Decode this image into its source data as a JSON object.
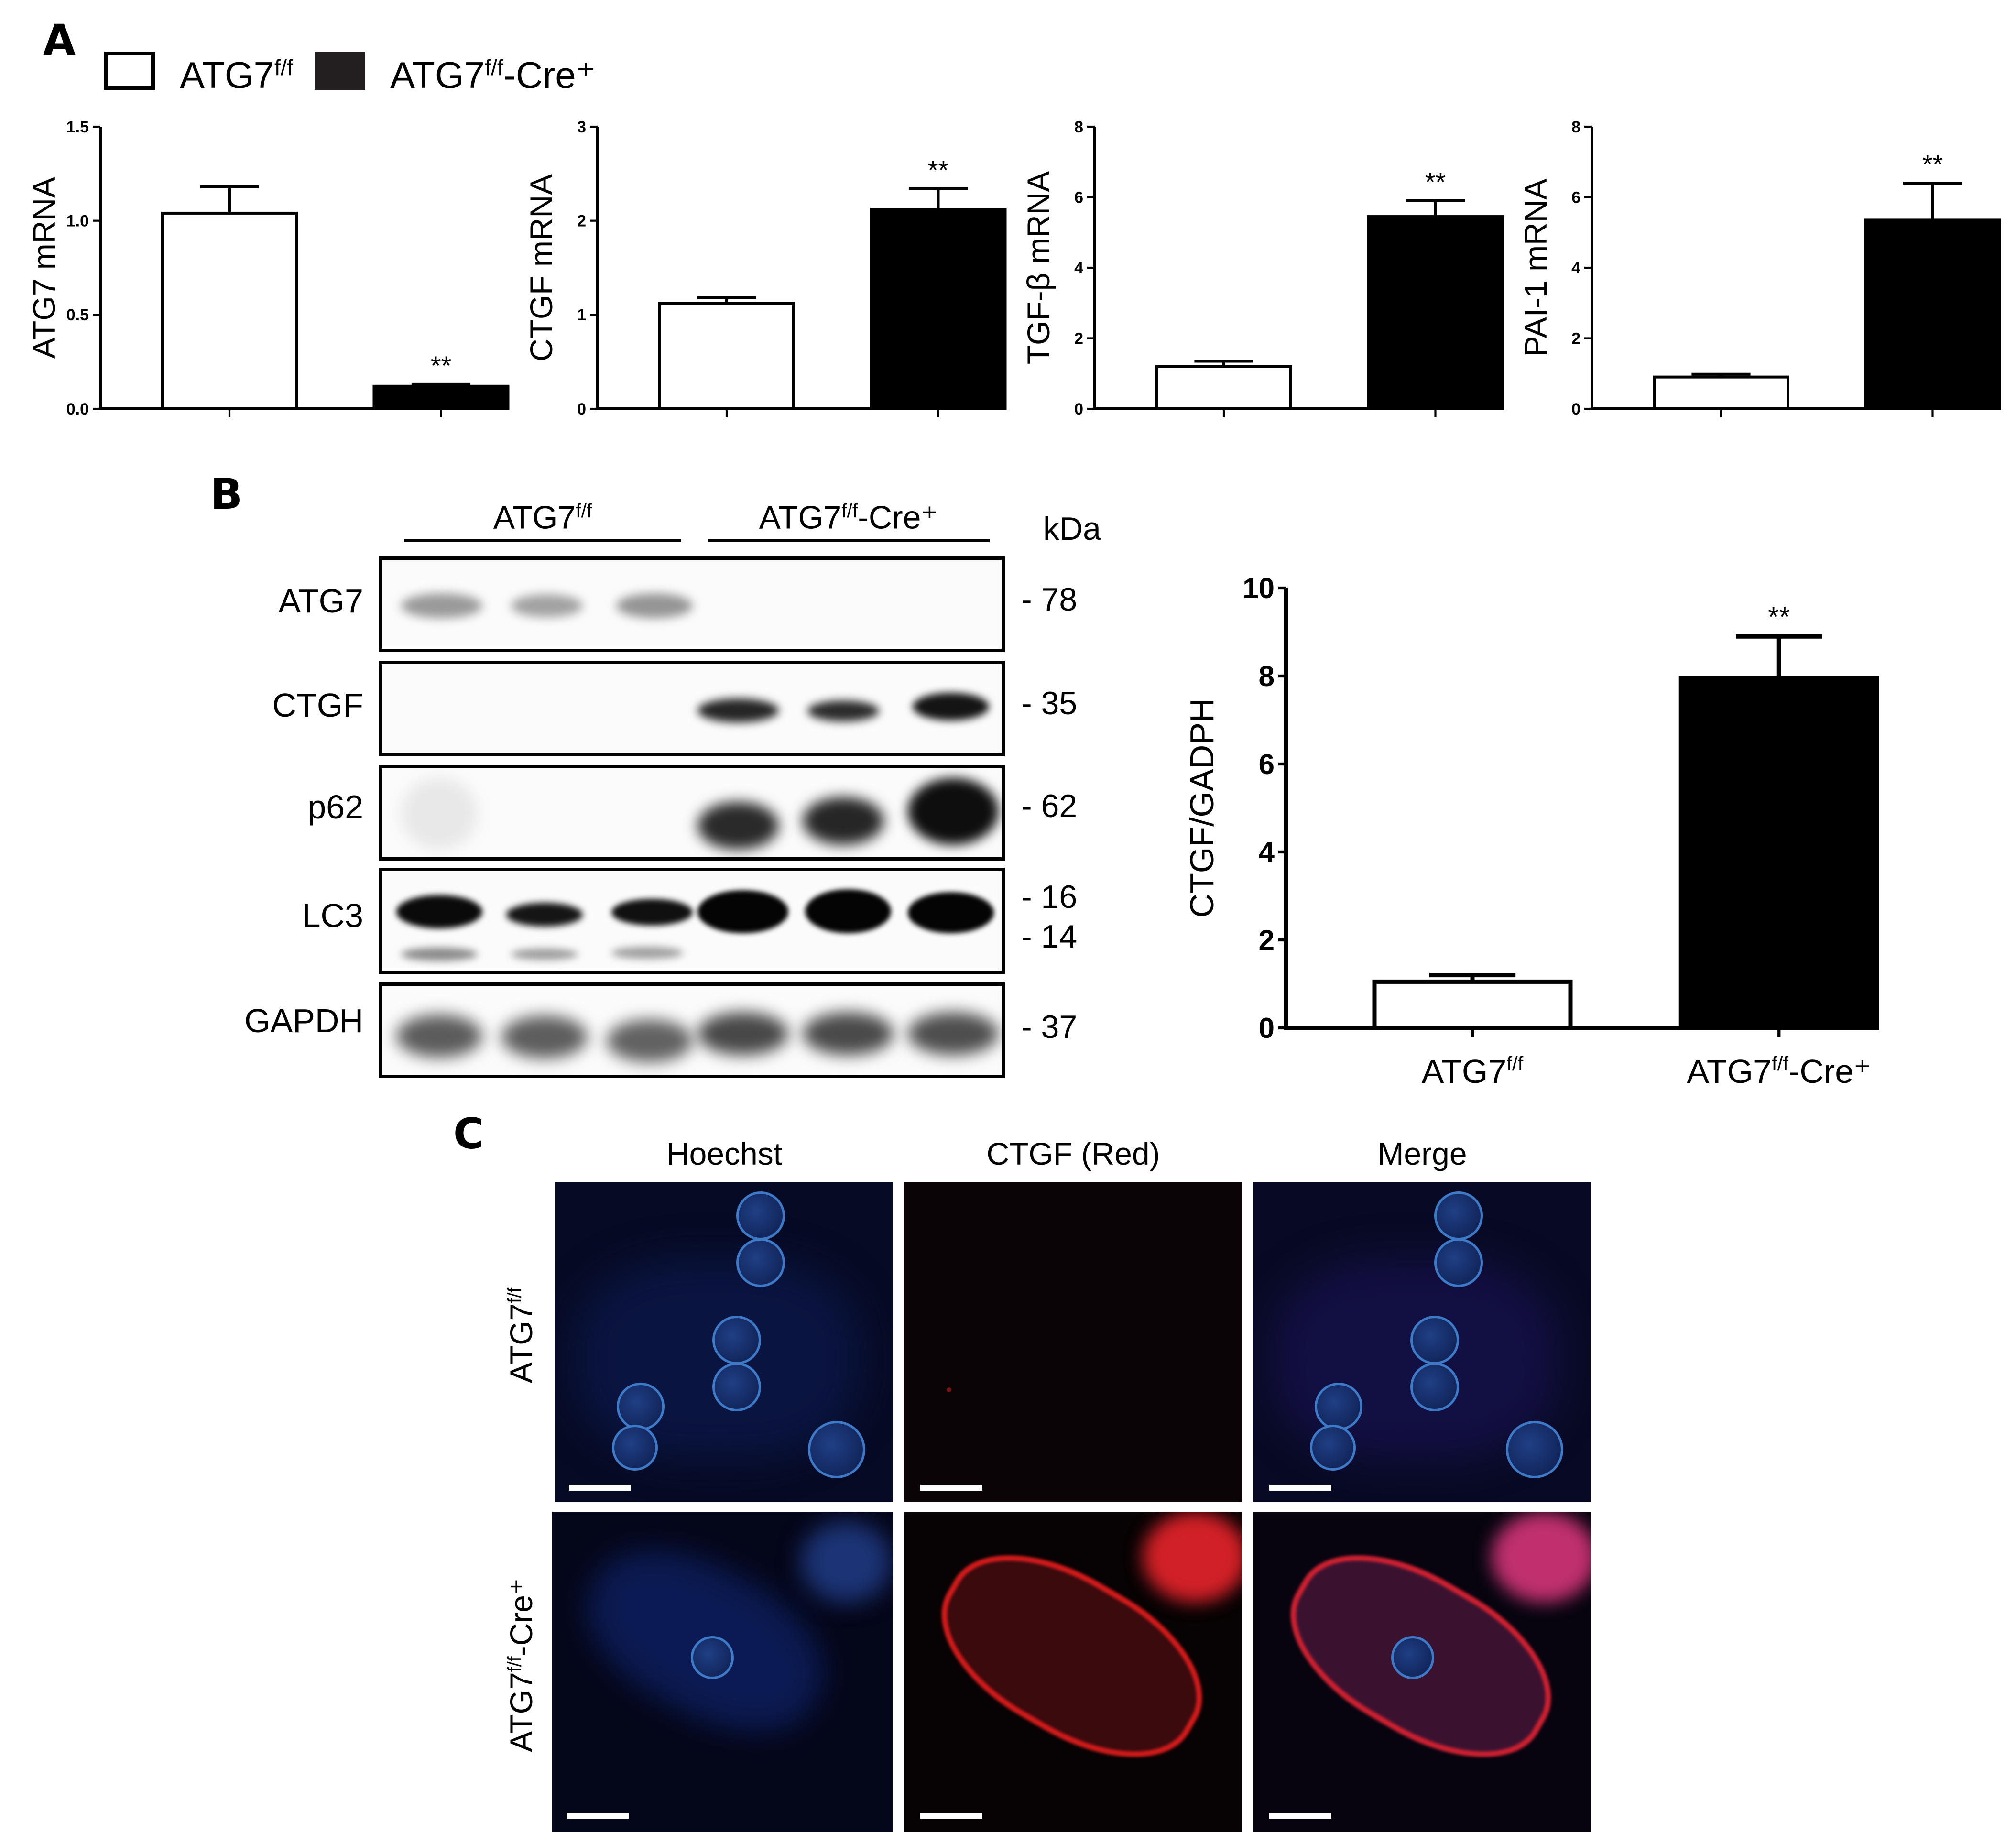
{
  "panels": {
    "a": "A",
    "b": "B",
    "c": "C"
  },
  "legend": {
    "items": [
      {
        "main": "ATG7",
        "sup": "f/f",
        "suffix": "",
        "color": "#ffffff"
      },
      {
        "main": "ATG7",
        "sup": "f/f",
        "suffix": "-Cre⁺",
        "color": "#000000"
      }
    ]
  },
  "chart_data": [
    {
      "type": "bar",
      "ylabel": "ATG7 mRNA",
      "categories": [
        "ATG7f/f",
        "ATG7f/f-Cre+"
      ],
      "values": [
        1.04,
        0.12
      ],
      "errors": [
        0.14,
        0.01
      ],
      "ylim": [
        0,
        1.5
      ],
      "yticks": [
        "0.0",
        "0.5",
        "1.0",
        "1.5"
      ],
      "significance": [
        null,
        "**"
      ]
    },
    {
      "type": "bar",
      "ylabel": "CTGF mRNA",
      "categories": [
        "ATG7f/f",
        "ATG7f/f-Cre+"
      ],
      "values": [
        1.12,
        2.12
      ],
      "errors": [
        0.06,
        0.22
      ],
      "ylim": [
        0,
        3
      ],
      "yticks": [
        "0",
        "1",
        "2",
        "3"
      ],
      "significance": [
        null,
        "**"
      ]
    },
    {
      "type": "bar",
      "ylabel": "TGF-β mRNA",
      "categories": [
        "ATG7f/f",
        "ATG7f/f-Cre+"
      ],
      "values": [
        1.2,
        5.45
      ],
      "errors": [
        0.15,
        0.45
      ],
      "ylim": [
        0,
        8
      ],
      "yticks": [
        "0",
        "2",
        "4",
        "6",
        "8"
      ],
      "significance": [
        null,
        "**"
      ]
    },
    {
      "type": "bar",
      "ylabel": "PAI-1 mRNA",
      "categories": [
        "ATG7f/f",
        "ATG7f/f-Cre+"
      ],
      "values": [
        0.9,
        5.35
      ],
      "errors": [
        0.08,
        1.05
      ],
      "ylim": [
        0,
        8
      ],
      "yticks": [
        "0",
        "2",
        "4",
        "6",
        "8"
      ],
      "significance": [
        null,
        "**"
      ]
    },
    {
      "type": "bar",
      "ylabel": "CTGF/GADPH",
      "categories": [
        "ATG7f/f",
        "ATG7f/f-Cre+"
      ],
      "values": [
        1.05,
        7.95
      ],
      "errors": [
        0.15,
        0.95
      ],
      "ylim": [
        0,
        10
      ],
      "yticks": [
        "0",
        "2",
        "4",
        "6",
        "8",
        "10"
      ],
      "significance": [
        null,
        "**"
      ]
    }
  ],
  "western": {
    "group1": {
      "main": "ATG7",
      "sup": "f/f",
      "suffix": ""
    },
    "group2": {
      "main": "ATG7",
      "sup": "f/f",
      "suffix": "-Cre⁺"
    },
    "kda_header": "kDa",
    "rows": [
      {
        "label": "ATG7",
        "markers": [
          "78"
        ]
      },
      {
        "label": "CTGF",
        "markers": [
          "35"
        ]
      },
      {
        "label": "p62",
        "markers": [
          "62"
        ]
      },
      {
        "label": "LC3",
        "markers": [
          "16",
          "14"
        ]
      },
      {
        "label": "GAPDH",
        "markers": [
          "37"
        ]
      }
    ],
    "xcat1": {
      "main": "ATG7",
      "sup": "f/f",
      "suffix": ""
    },
    "xcat2": {
      "main": "ATG7",
      "sup": "f/f",
      "suffix": "-Cre⁺"
    }
  },
  "microscopy": {
    "columns": [
      "Hoechst",
      "CTGF (Red)",
      "Merge"
    ],
    "row1": {
      "main": "ATG7",
      "sup": "f/f",
      "suffix": ""
    },
    "row2": {
      "main": "ATG7",
      "sup": "f/f",
      "suffix": "-Cre⁺"
    }
  }
}
